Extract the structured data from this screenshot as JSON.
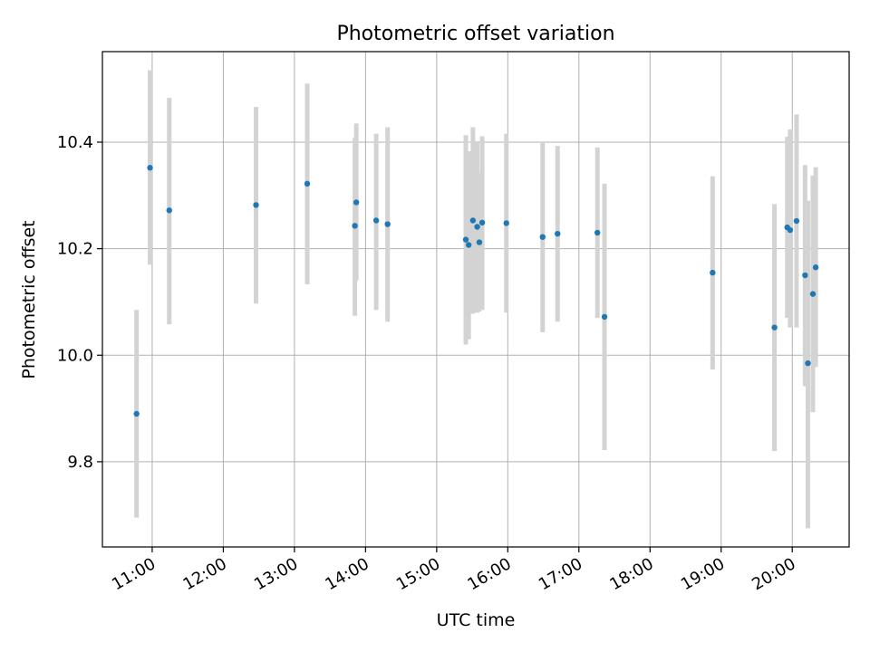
{
  "chart_data": {
    "type": "scatter",
    "title": "Photometric offset variation",
    "xlabel": "UTC time",
    "ylabel": "Photometric offset",
    "x_unit": "hours UTC",
    "xlim": [
      10.3,
      20.8
    ],
    "ylim": [
      9.64,
      10.57
    ],
    "x_ticks": [
      {
        "value": 11,
        "label": "11:00"
      },
      {
        "value": 12,
        "label": "12:00"
      },
      {
        "value": 13,
        "label": "13:00"
      },
      {
        "value": 14,
        "label": "14:00"
      },
      {
        "value": 15,
        "label": "15:00"
      },
      {
        "value": 16,
        "label": "16:00"
      },
      {
        "value": 17,
        "label": "17:00"
      },
      {
        "value": 18,
        "label": "18:00"
      },
      {
        "value": 19,
        "label": "19:00"
      },
      {
        "value": 20,
        "label": "20:00"
      }
    ],
    "y_ticks": [
      {
        "value": 9.8,
        "label": "9.8"
      },
      {
        "value": 10.0,
        "label": "10.0"
      },
      {
        "value": 10.2,
        "label": "10.2"
      },
      {
        "value": 10.4,
        "label": "10.4"
      }
    ],
    "grid": true,
    "marker_color": "#1f77b4",
    "errorbar_color": "#d3d3d3",
    "points": [
      {
        "x": 10.78,
        "y": 9.89,
        "low": 9.695,
        "high": 10.085
      },
      {
        "x": 10.97,
        "y": 10.352,
        "low": 10.17,
        "high": 10.535
      },
      {
        "x": 11.24,
        "y": 10.272,
        "low": 10.058,
        "high": 10.483
      },
      {
        "x": 12.46,
        "y": 10.282,
        "low": 10.097,
        "high": 10.466
      },
      {
        "x": 13.18,
        "y": 10.322,
        "low": 10.133,
        "high": 10.51
      },
      {
        "x": 13.85,
        "y": 10.243,
        "low": 10.074,
        "high": 10.408
      },
      {
        "x": 13.87,
        "y": 10.287,
        "low": 10.14,
        "high": 10.435
      },
      {
        "x": 14.15,
        "y": 10.253,
        "low": 10.085,
        "high": 10.416
      },
      {
        "x": 14.31,
        "y": 10.246,
        "low": 10.063,
        "high": 10.428
      },
      {
        "x": 15.41,
        "y": 10.217,
        "low": 10.02,
        "high": 10.413
      },
      {
        "x": 15.45,
        "y": 10.207,
        "low": 10.03,
        "high": 10.383
      },
      {
        "x": 15.51,
        "y": 10.253,
        "low": 10.078,
        "high": 10.428
      },
      {
        "x": 15.57,
        "y": 10.241,
        "low": 10.08,
        "high": 10.402
      },
      {
        "x": 15.6,
        "y": 10.212,
        "low": 10.082,
        "high": 10.342
      },
      {
        "x": 15.64,
        "y": 10.249,
        "low": 10.085,
        "high": 10.411
      },
      {
        "x": 15.98,
        "y": 10.248,
        "low": 10.08,
        "high": 10.416
      },
      {
        "x": 16.49,
        "y": 10.222,
        "low": 10.043,
        "high": 10.4
      },
      {
        "x": 16.7,
        "y": 10.228,
        "low": 10.063,
        "high": 10.393
      },
      {
        "x": 17.26,
        "y": 10.23,
        "low": 10.07,
        "high": 10.39
      },
      {
        "x": 17.36,
        "y": 10.072,
        "low": 9.822,
        "high": 10.322
      },
      {
        "x": 18.88,
        "y": 10.155,
        "low": 9.973,
        "high": 10.336
      },
      {
        "x": 19.75,
        "y": 10.052,
        "low": 9.82,
        "high": 10.284
      },
      {
        "x": 19.93,
        "y": 10.24,
        "low": 10.07,
        "high": 10.41
      },
      {
        "x": 19.97,
        "y": 10.235,
        "low": 10.052,
        "high": 10.424
      },
      {
        "x": 20.06,
        "y": 10.252,
        "low": 10.052,
        "high": 10.452
      },
      {
        "x": 20.18,
        "y": 10.15,
        "low": 9.942,
        "high": 10.357
      },
      {
        "x": 20.22,
        "y": 9.985,
        "low": 9.675,
        "high": 10.29
      },
      {
        "x": 20.29,
        "y": 10.115,
        "low": 9.893,
        "high": 10.337
      },
      {
        "x": 20.33,
        "y": 10.165,
        "low": 9.978,
        "high": 10.353
      }
    ]
  }
}
